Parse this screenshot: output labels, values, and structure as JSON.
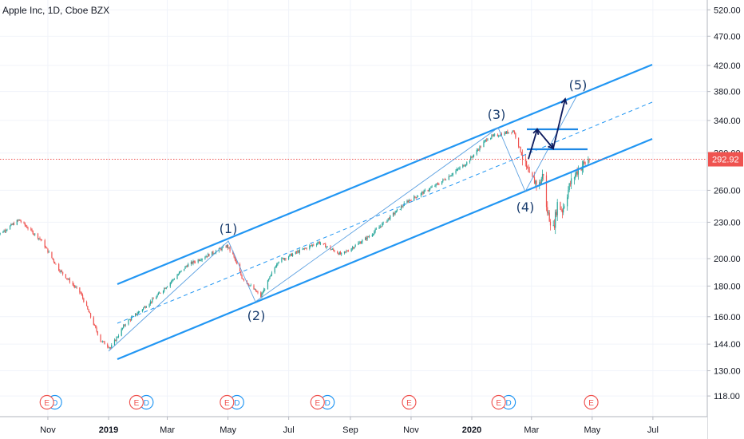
{
  "title": "Apple Inc, 1D, Cboe BZX",
  "chart_data": {
    "type": "candlestick",
    "instrument": "Apple Inc",
    "interval": "1D",
    "exchange": "Cboe BZX",
    "last_price": "292.92",
    "y_axis": {
      "scale": "log",
      "ticks": [
        "520.00",
        "470.00",
        "420.00",
        "380.00",
        "340.00",
        "300.00",
        "260.00",
        "230.00",
        "200.00",
        "180.00",
        "160.00",
        "144.00",
        "130.00",
        "118.00"
      ]
    },
    "x_axis": {
      "ticks": [
        "Nov",
        "2019",
        "Mar",
        "May",
        "Jul",
        "Sep",
        "Nov",
        "2020",
        "Mar",
        "May",
        "Jul"
      ]
    },
    "wave_labels": [
      "(1)",
      "(2)",
      "(3)",
      "(4)",
      "(5)"
    ],
    "events": [
      {
        "date": "2018-10-31",
        "type": "E"
      },
      {
        "date": "2019-01-29",
        "type": "E"
      },
      {
        "date": "2019-04-30",
        "type": "E"
      },
      {
        "date": "2019-07-30",
        "type": "E"
      },
      {
        "date": "2019-10-30",
        "type": "E"
      },
      {
        "date": "2020-01-28",
        "type": "E"
      },
      {
        "date": "2020-04-30",
        "type": "E"
      }
    ],
    "dividends": [
      {
        "date": "2018-11-08",
        "type": "D"
      },
      {
        "date": "2019-02-08",
        "type": "D"
      },
      {
        "date": "2019-05-10",
        "type": "D"
      },
      {
        "date": "2019-08-09",
        "type": "D"
      },
      {
        "date": "2020-02-07",
        "type": "D"
      }
    ],
    "price_path": [
      [
        "2018-09-10",
        218
      ],
      [
        "2018-10-03",
        232
      ],
      [
        "2018-10-25",
        215
      ],
      [
        "2018-11-12",
        192
      ],
      [
        "2018-12-04",
        175
      ],
      [
        "2018-12-24",
        146
      ],
      [
        "2019-01-03",
        142
      ],
      [
        "2019-01-18",
        156
      ],
      [
        "2019-02-15",
        171
      ],
      [
        "2019-03-21",
        195
      ],
      [
        "2019-04-30",
        210
      ],
      [
        "2019-05-06",
        203
      ],
      [
        "2019-05-15",
        186
      ],
      [
        "2019-06-03",
        173
      ],
      [
        "2019-06-20",
        198
      ],
      [
        "2019-07-31",
        213
      ],
      [
        "2019-08-23",
        203
      ],
      [
        "2019-09-20",
        218
      ],
      [
        "2019-10-28",
        249
      ],
      [
        "2019-11-29",
        267
      ],
      [
        "2019-12-27",
        289
      ],
      [
        "2020-01-17",
        318
      ],
      [
        "2020-02-12",
        327
      ],
      [
        "2020-02-28",
        273
      ],
      [
        "2020-03-09",
        266
      ],
      [
        "2020-03-13",
        278
      ],
      [
        "2020-03-16",
        242
      ],
      [
        "2020-03-23",
        224
      ],
      [
        "2020-03-27",
        247
      ],
      [
        "2020-04-01",
        241
      ],
      [
        "2020-04-09",
        267
      ],
      [
        "2020-04-17",
        282
      ],
      [
        "2020-04-28",
        292.92
      ]
    ]
  }
}
